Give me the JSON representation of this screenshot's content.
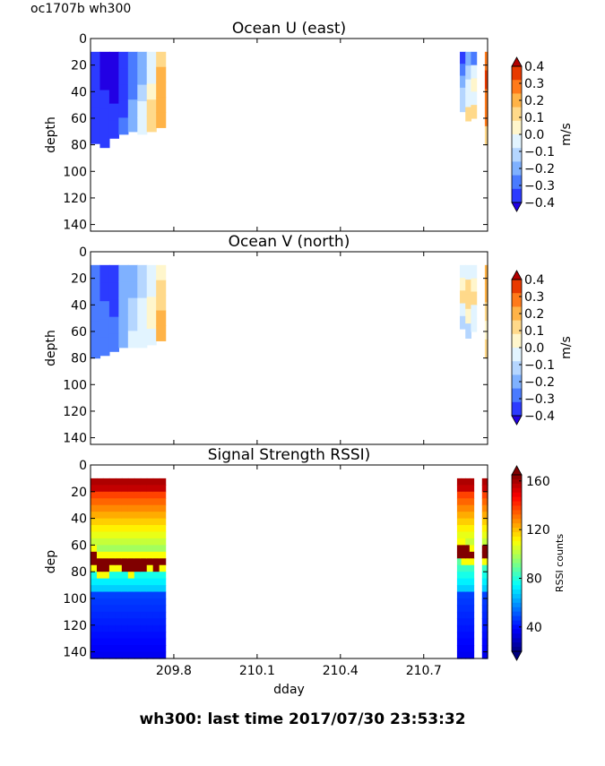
{
  "figure_title": "oc1707b wh300",
  "footer": "wh300: last time 2017/07/30 23:53:32",
  "colors": {
    "velocity_levels": [
      "#2200e4",
      "#2c3bff",
      "#4a7bff",
      "#7fb1ff",
      "#b5d6ff",
      "#e2f4ff",
      "#fff6cc",
      "#ffd98a",
      "#ffb347",
      "#ff7a1a",
      "#e83a00",
      "#b30000"
    ],
    "rssi_jet": [
      "#000080",
      "#0000ff",
      "#0080ff",
      "#00ffff",
      "#80ff80",
      "#ffff00",
      "#ff8000",
      "#ff0000",
      "#800000"
    ]
  },
  "chart_data": [
    {
      "type": "heatmap",
      "title": "Ocean U (east)",
      "ylabel": "depth",
      "xlabel": "",
      "ylim": [
        145,
        0
      ],
      "yticks": [
        "0",
        "20",
        "40",
        "60",
        "80",
        "100",
        "120",
        "140"
      ],
      "xticks": [],
      "colorbar": {
        "label": "m/s",
        "ticks": [
          "0.4",
          "0.3",
          "0.2",
          "0.1",
          "0.0",
          "−0.1",
          "−0.2",
          "−0.3",
          "−0.4"
        ],
        "range": [
          -0.4,
          0.4
        ]
      },
      "segments": [
        {
          "x_start": 209.5,
          "x_end": 209.77,
          "depth_top": 10,
          "columns": [
            {
              "bottom": 79,
              "values": [
                -0.4,
                -0.4,
                -0.4,
                -0.35,
                -0.35
              ]
            },
            {
              "bottom": 82,
              "values": [
                -0.45,
                -0.45,
                -0.4,
                -0.4,
                -0.35
              ]
            },
            {
              "bottom": 75,
              "values": [
                -0.45,
                -0.45,
                -0.45,
                -0.4,
                -0.35
              ]
            },
            {
              "bottom": 72,
              "values": [
                -0.4,
                -0.4,
                -0.35,
                -0.35,
                -0.3
              ]
            },
            {
              "bottom": 70,
              "values": [
                -0.3,
                -0.3,
                -0.25,
                -0.2,
                -0.15
              ]
            },
            {
              "bottom": 72,
              "values": [
                -0.15,
                -0.15,
                -0.1,
                -0.05,
                -0.05
              ]
            },
            {
              "bottom": 70,
              "values": [
                -0.05,
                -0.05,
                0.0,
                0.05,
                0.05
              ]
            },
            {
              "bottom": 67,
              "values": [
                0.05,
                0.15,
                0.15,
                0.15,
                0.15
              ]
            }
          ]
        },
        {
          "x_start": 210.83,
          "x_end": 210.89,
          "depth_top": 10,
          "columns": [
            {
              "bottom": 55,
              "values": [
                -0.35,
                -0.25,
                -0.15,
                -0.1,
                -0.1
              ]
            },
            {
              "bottom": 62,
              "values": [
                -0.2,
                -0.1,
                -0.05,
                -0.05,
                0.05
              ]
            },
            {
              "bottom": 60,
              "values": [
                -0.3,
                -0.05,
                0.0,
                -0.05,
                0.05
              ]
            }
          ]
        },
        {
          "x_start": 210.92,
          "x_end": 210.93,
          "depth_top": 10,
          "columns": [
            {
              "bottom": 80,
              "values": [
                0.25,
                0.35,
                0.25,
                0.2,
                0.05
              ]
            }
          ]
        }
      ]
    },
    {
      "type": "heatmap",
      "title": "Ocean V (north)",
      "ylabel": "depth",
      "xlabel": "",
      "ylim": [
        145,
        0
      ],
      "yticks": [
        "0",
        "20",
        "40",
        "60",
        "80",
        "100",
        "120",
        "140"
      ],
      "xticks": [],
      "colorbar": {
        "label": "m/s",
        "ticks": [
          "0.4",
          "0.3",
          "0.2",
          "0.1",
          "0.0",
          "−0.1",
          "−0.2",
          "−0.3",
          "−0.4"
        ],
        "range": [
          -0.4,
          0.4
        ]
      },
      "segments": [
        {
          "x_start": 209.5,
          "x_end": 209.77,
          "depth_top": 10,
          "columns": [
            {
              "bottom": 80,
              "values": [
                -0.3,
                -0.3,
                -0.25,
                -0.25,
                -0.25
              ]
            },
            {
              "bottom": 78,
              "values": [
                -0.35,
                -0.35,
                -0.3,
                -0.3,
                -0.25
              ]
            },
            {
              "bottom": 75,
              "values": [
                -0.4,
                -0.4,
                -0.35,
                -0.3,
                -0.25
              ]
            },
            {
              "bottom": 72,
              "values": [
                -0.2,
                -0.2,
                -0.2,
                -0.15,
                -0.15
              ]
            },
            {
              "bottom": 72,
              "values": [
                -0.15,
                -0.15,
                -0.1,
                -0.1,
                -0.05
              ]
            },
            {
              "bottom": 72,
              "values": [
                -0.1,
                -0.1,
                -0.05,
                -0.05,
                -0.05
              ]
            },
            {
              "bottom": 70,
              "values": [
                -0.05,
                -0.05,
                0.0,
                0.0,
                -0.05
              ]
            },
            {
              "bottom": 67,
              "values": [
                0.0,
                0.05,
                0.05,
                0.15,
                0.15
              ]
            }
          ]
        },
        {
          "x_start": 210.83,
          "x_end": 210.89,
          "depth_top": 10,
          "columns": [
            {
              "bottom": 58,
              "values": [
                -0.05,
                0.0,
                0.05,
                -0.05,
                -0.1
              ]
            },
            {
              "bottom": 65,
              "values": [
                -0.05,
                0.05,
                0.05,
                0.0,
                -0.1
              ]
            },
            {
              "bottom": 60,
              "values": [
                -0.05,
                0.0,
                0.05,
                -0.05,
                -0.05
              ]
            }
          ]
        },
        {
          "x_start": 210.92,
          "x_end": 210.93,
          "depth_top": 10,
          "columns": [
            {
              "bottom": 80,
              "values": [
                0.15,
                0.15,
                0.05,
                0.0,
                0.05
              ]
            }
          ]
        }
      ]
    },
    {
      "type": "heatmap",
      "title": "Signal Strength RSSI)",
      "ylabel": "dep",
      "xlabel": "dday",
      "ylim": [
        145,
        0
      ],
      "yticks": [
        "0",
        "20",
        "40",
        "60",
        "80",
        "100",
        "120",
        "140"
      ],
      "xticks": [
        209.8,
        210.1,
        210.4,
        210.7
      ],
      "xtick_labels": [
        "209.8",
        "210.1",
        "210.4",
        "210.7"
      ],
      "colorbar": {
        "label": "RSSI counts",
        "ticks": [
          "160",
          "120",
          "80",
          "40"
        ],
        "tick_values": [
          160,
          120,
          80,
          40
        ],
        "range": [
          20,
          165
        ]
      },
      "segments": [
        {
          "x_start": 209.5,
          "x_end": 209.77,
          "depth_top": 10,
          "depth_bottom": 145,
          "band_depths": [
            70,
            75,
            75,
            73,
            72,
            74,
            75,
            74,
            74,
            73,
            74,
            73
          ]
        },
        {
          "x_start": 210.82,
          "x_end": 210.88,
          "depth_top": 10,
          "depth_bottom": 145,
          "band_depths": [
            64,
            65,
            66,
            67
          ]
        },
        {
          "x_start": 210.91,
          "x_end": 210.93,
          "depth_top": 10,
          "depth_bottom": 145,
          "band_depths": [
            66,
            66
          ]
        }
      ],
      "x_range": [
        209.5,
        210.93
      ]
    }
  ]
}
